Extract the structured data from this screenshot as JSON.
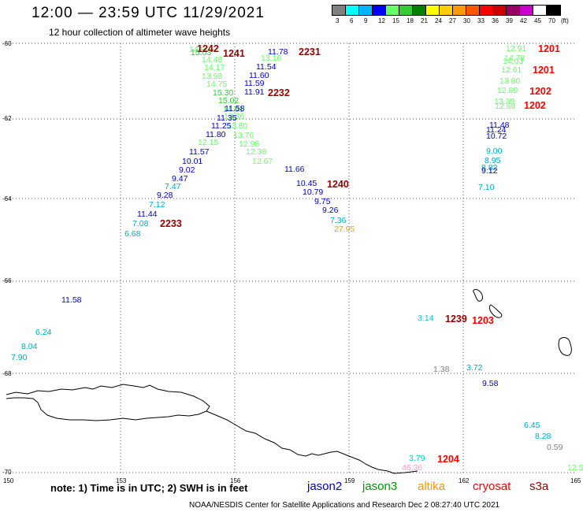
{
  "title": "12:00 — 23:59 UTC 11/29/2021",
  "subtitle": "12 hour collection of altimeter wave heights",
  "colorbar": {
    "colors": [
      "#808080",
      "#00ffff",
      "#00b4ff",
      "#0000ff",
      "#66ff66",
      "#33cc33",
      "#008000",
      "#ffff00",
      "#ffcc00",
      "#ff9900",
      "#ff5500",
      "#ff0000",
      "#cc0000",
      "#990066",
      "#cc00cc",
      "#ffffff",
      "#000000"
    ],
    "labels": [
      "3",
      "6",
      "9",
      "12",
      "15",
      "18",
      "21",
      "24",
      "27",
      "30",
      "33",
      "36",
      "39",
      "42",
      "45",
      "70",
      "(ft)"
    ]
  },
  "axes": {
    "lat_labels": [
      "-60",
      "-62",
      "-64",
      "-66",
      "-68",
      "-70"
    ],
    "lon_labels": [
      "150",
      "153",
      "156",
      "159",
      "162",
      "165"
    ]
  },
  "note": "note: 1) Time is in UTC; 2) SWH is in feet",
  "satellites": [
    {
      "name": "jason2",
      "color": "#0000cc"
    },
    {
      "name": "jason3",
      "color": "#009900"
    },
    {
      "name": "altika",
      "color": "#ff9900"
    },
    {
      "name": "cryosat",
      "color": "#ff0000"
    },
    {
      "name": "s3a",
      "color": "#990000"
    }
  ],
  "credit": "NOAA/NESDIS Center for Satellite Applications and Research   Dec  2 08:27:40 UTC 2021",
  "passes": [
    {
      "label": "1242",
      "color": "#990000"
    },
    {
      "label": "1241",
      "color": "#990000"
    },
    {
      "label": "2231",
      "color": "#990000"
    },
    {
      "label": "2232",
      "color": "#990000"
    },
    {
      "label": "2233",
      "color": "#990000"
    },
    {
      "label": "1240",
      "color": "#990000"
    },
    {
      "label": "1201",
      "color": "#ff0000"
    },
    {
      "label": "1201",
      "color": "#ff0000"
    },
    {
      "label": "1202",
      "color": "#ff0000"
    },
    {
      "label": "1202",
      "color": "#ff0000"
    },
    {
      "label": "1239",
      "color": "#990000"
    },
    {
      "label": "1203",
      "color": "#ff0000"
    },
    {
      "label": "1204",
      "color": "#ff0000"
    }
  ],
  "wave_heights": [
    {
      "v": "14.96",
      "c": "#66ff66"
    },
    {
      "v": "15.03",
      "c": "#33cc33"
    },
    {
      "v": "14.48",
      "c": "#66ff66"
    },
    {
      "v": "14.17",
      "c": "#66ff66"
    },
    {
      "v": "13.98",
      "c": "#66ff66"
    },
    {
      "v": "14.75",
      "c": "#66ff66"
    },
    {
      "v": "15.30",
      "c": "#33cc33"
    },
    {
      "v": "15.02",
      "c": "#33cc33"
    },
    {
      "v": "14.01",
      "c": "#33cc33"
    },
    {
      "v": "13.86",
      "c": "#66ff66"
    },
    {
      "v": "13.80",
      "c": "#66ff66"
    },
    {
      "v": "13.76",
      "c": "#66ff66"
    },
    {
      "v": "12.98",
      "c": "#66ff66"
    },
    {
      "v": "12.38",
      "c": "#66ff66"
    },
    {
      "v": "12.67",
      "c": "#66ff66"
    },
    {
      "v": "12.15",
      "c": "#66ff66"
    },
    {
      "v": "13.16",
      "c": "#66ff66"
    },
    {
      "v": "11.78",
      "c": "#0000cc"
    },
    {
      "v": "11.54",
      "c": "#0000cc"
    },
    {
      "v": "11.60",
      "c": "#0000cc"
    },
    {
      "v": "11.59",
      "c": "#0000cc"
    },
    {
      "v": "11.91",
      "c": "#0000cc"
    },
    {
      "v": "11.58",
      "c": "#0000cc"
    },
    {
      "v": "11.35",
      "c": "#0000cc"
    },
    {
      "v": "11.25",
      "c": "#0000cc"
    },
    {
      "v": "11.80",
      "c": "#0000cc"
    },
    {
      "v": "11.57",
      "c": "#0000cc"
    },
    {
      "v": "10.01",
      "c": "#0000cc"
    },
    {
      "v": "9.02",
      "c": "#0000cc"
    },
    {
      "v": "9.47",
      "c": "#0000cc"
    },
    {
      "v": "7.47",
      "c": "#00aacc"
    },
    {
      "v": "9.28",
      "c": "#0000cc"
    },
    {
      "v": "7.12",
      "c": "#00aacc"
    },
    {
      "v": "11.44",
      "c": "#0000cc"
    },
    {
      "v": "7.08",
      "c": "#00aacc"
    },
    {
      "v": "6.68",
      "c": "#00aacc"
    },
    {
      "v": "11.66",
      "c": "#0000cc"
    },
    {
      "v": "10.45",
      "c": "#0000cc"
    },
    {
      "v": "10.79",
      "c": "#0000cc"
    },
    {
      "v": "9.75",
      "c": "#0000cc"
    },
    {
      "v": "9.26",
      "c": "#0000cc"
    },
    {
      "v": "7.36",
      "c": "#00aacc"
    },
    {
      "v": "27.95",
      "c": "#ff9900"
    },
    {
      "v": "12.91",
      "c": "#66ff66"
    },
    {
      "v": "14.78",
      "c": "#66ff66"
    },
    {
      "v": "14.03",
      "c": "#66ff66"
    },
    {
      "v": "12.61",
      "c": "#66ff66"
    },
    {
      "v": "13.80",
      "c": "#66ff66"
    },
    {
      "v": "12.89",
      "c": "#66ff66"
    },
    {
      "v": "13.39",
      "c": "#66ff66"
    },
    {
      "v": "12.68",
      "c": "#66ff66"
    },
    {
      "v": "11.48",
      "c": "#0000cc"
    },
    {
      "v": "11.24",
      "c": "#0000cc"
    },
    {
      "v": "10.72",
      "c": "#0000cc"
    },
    {
      "v": "9.00",
      "c": "#00aacc"
    },
    {
      "v": "8.95",
      "c": "#00aacc"
    },
    {
      "v": "8.82",
      "c": "#00aacc"
    },
    {
      "v": "9.12",
      "c": "#0000cc"
    },
    {
      "v": "7.10",
      "c": "#00aacc"
    },
    {
      "v": "11.58",
      "c": "#0000cc"
    },
    {
      "v": "6.24",
      "c": "#00aacc"
    },
    {
      "v": "8.04",
      "c": "#00aacc"
    },
    {
      "v": "7.90",
      "c": "#00aacc"
    },
    {
      "v": "3.14",
      "c": "#00cccc"
    },
    {
      "v": "1.38",
      "c": "#808080"
    },
    {
      "v": "3.72",
      "c": "#00aacc"
    },
    {
      "v": "9.58",
      "c": "#0000cc"
    },
    {
      "v": "6.45",
      "c": "#00aacc"
    },
    {
      "v": "8.28",
      "c": "#00aacc"
    },
    {
      "v": "0.59",
      "c": "#808080"
    },
    {
      "v": "3.79",
      "c": "#00cccc"
    },
    {
      "v": "46.36",
      "c": "#ff99cc"
    },
    {
      "v": "12.5",
      "c": "#66ff66"
    }
  ]
}
